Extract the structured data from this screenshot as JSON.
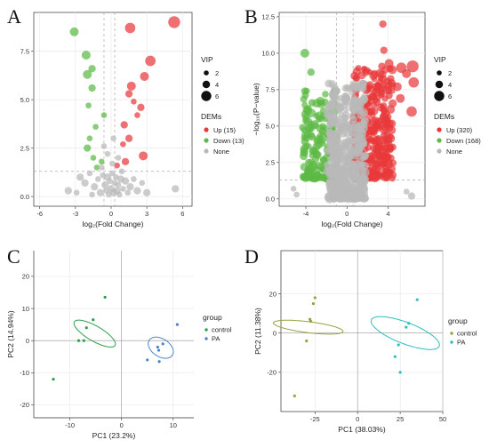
{
  "panel_letters": [
    "A",
    "B",
    "C",
    "D"
  ],
  "colors": {
    "up": "#e8393b",
    "down": "#5cb945",
    "none": "#b9b9b9",
    "grid": "#e9e9e9",
    "control_C": "#2e9f4a",
    "pa_C": "#4e86c4",
    "control_D": "#97a33f",
    "pa_D": "#2ebdc0"
  },
  "chart_data": [
    {
      "id": "A",
      "type": "scatter",
      "xlabel": "log₂(Fold Change)",
      "ylabel": "",
      "xlim": [
        -6.5,
        6.8
      ],
      "ylim": [
        -0.5,
        9.5
      ],
      "xticks": [
        -6,
        -3,
        0,
        3,
        6
      ],
      "yticks": [
        0.0,
        2.5,
        5.0,
        7.5
      ],
      "ytick_labels": [
        "0.0",
        "2.5",
        "5.0",
        "7.5"
      ],
      "vlines": [
        -0.6,
        0.3
      ],
      "hline": 1.3,
      "legend": {
        "size_title": "VIP",
        "size_labels": [
          "2",
          "4",
          "6"
        ],
        "color_title": "DEMs",
        "color_labels": [
          "Up (15)",
          "Down (13)",
          "None"
        ]
      },
      "series": [
        {
          "name": "Up (15)",
          "color_key": "up",
          "points": [
            [
              5.3,
              9.0,
              6
            ],
            [
              1.6,
              8.7,
              5
            ],
            [
              3.3,
              7.0,
              5
            ],
            [
              2.8,
              6.2,
              4
            ],
            [
              1.7,
              5.7,
              4
            ],
            [
              1.5,
              5.3,
              3
            ],
            [
              2.5,
              4.6,
              3
            ],
            [
              1.1,
              3.7,
              3
            ],
            [
              1.5,
              3.0,
              3
            ],
            [
              2.7,
              2.1,
              4
            ],
            [
              1.2,
              1.8,
              3
            ],
            [
              0.5,
              1.6,
              2
            ],
            [
              2.2,
              4.2,
              2
            ],
            [
              1.9,
              4.9,
              2
            ],
            [
              1.0,
              2.7,
              2
            ]
          ]
        },
        {
          "name": "Down (13)",
          "color_key": "down",
          "points": [
            [
              -3.1,
              8.5,
              4
            ],
            [
              -2.1,
              7.3,
              4
            ],
            [
              -1.6,
              6.6,
              3
            ],
            [
              -2.0,
              6.3,
              4
            ],
            [
              -1.6,
              5.6,
              3
            ],
            [
              -1.9,
              4.7,
              2
            ],
            [
              -0.6,
              4.2,
              2
            ],
            [
              -1.3,
              3.6,
              2
            ],
            [
              -1.8,
              3.0,
              2
            ],
            [
              -2.0,
              2.5,
              3
            ],
            [
              -0.8,
              1.8,
              2
            ],
            [
              -1.2,
              1.5,
              2
            ],
            [
              -1.5,
              2.0,
              2
            ]
          ]
        },
        {
          "name": "None",
          "color_key": "none",
          "points": [
            [
              -3.6,
              0.3,
              3
            ],
            [
              -2.6,
              1.0,
              3
            ],
            [
              -2.2,
              0.7,
              3
            ],
            [
              -1.8,
              1.2,
              2
            ],
            [
              -1.4,
              0.5,
              3
            ],
            [
              -1.1,
              0.9,
              2
            ],
            [
              -0.9,
              0.2,
              3
            ],
            [
              -0.7,
              1.1,
              2
            ],
            [
              -0.5,
              0.6,
              3
            ],
            [
              -0.4,
              0.3,
              2
            ],
            [
              -0.3,
              1.0,
              3
            ],
            [
              -0.2,
              0.1,
              2
            ],
            [
              -0.1,
              0.8,
              2
            ],
            [
              0.0,
              0.4,
              3
            ],
            [
              0.1,
              1.2,
              2
            ],
            [
              0.2,
              0.2,
              3
            ],
            [
              0.3,
              0.7,
              2
            ],
            [
              0.4,
              1.0,
              2
            ],
            [
              0.5,
              0.3,
              3
            ],
            [
              0.6,
              0.6,
              2
            ],
            [
              0.7,
              0.1,
              2
            ],
            [
              0.8,
              0.9,
              3
            ],
            [
              1.0,
              0.4,
              2
            ],
            [
              1.2,
              0.8,
              3
            ],
            [
              1.4,
              0.2,
              2
            ],
            [
              1.6,
              0.5,
              3
            ],
            [
              1.9,
              0.9,
              2
            ],
            [
              2.2,
              0.3,
              3
            ],
            [
              2.6,
              0.7,
              2
            ],
            [
              3.0,
              0.2,
              3
            ],
            [
              5.4,
              0.4,
              3
            ],
            [
              -0.6,
              2.6,
              2
            ],
            [
              0.2,
              3.0,
              2
            ],
            [
              -0.3,
              2.2,
              2
            ],
            [
              0.6,
              2.0,
              2
            ],
            [
              -2.9,
              0.2,
              2
            ],
            [
              0.9,
              1.3,
              2
            ],
            [
              -1.6,
              0.1,
              2
            ],
            [
              0.1,
              1.7,
              2
            ],
            [
              -0.8,
              1.5,
              2
            ]
          ]
        }
      ]
    },
    {
      "id": "B",
      "type": "scatter",
      "xlabel": "log₂(Fold Change)",
      "ylabel": "−log₁₀(P−value)",
      "xlim": [
        -6.6,
        7.6
      ],
      "ylim": [
        -0.5,
        12.8
      ],
      "xticks": [
        -4,
        0,
        4
      ],
      "yticks": [
        0.0,
        2.5,
        5.0,
        7.5,
        10.0,
        12.5
      ],
      "ytick_labels": [
        "0.0",
        "2.5",
        "5.0",
        "7.5",
        "10.0",
        "12.5"
      ],
      "vlines": [
        -1.0,
        0.6
      ],
      "hline": 1.3,
      "legend": {
        "size_title": "VIP",
        "size_labels": [
          "2",
          "4",
          "6"
        ],
        "color_title": "DEMs",
        "color_labels": [
          "Up (320)",
          "Down (168)",
          "None"
        ]
      },
      "clouds": [
        {
          "color_key": "up",
          "count": 320,
          "x_range": [
            0.6,
            4.5
          ],
          "y_range": [
            1.4,
            9.0
          ],
          "seed": 11
        },
        {
          "color_key": "down",
          "count": 168,
          "x_range": [
            -4.3,
            -1.0
          ],
          "y_range": [
            1.4,
            7.5
          ],
          "seed": 23
        },
        {
          "color_key": "none",
          "count": 460,
          "x_range": [
            -1.9,
            1.8
          ],
          "y_range": [
            0.0,
            8.0
          ],
          "seed": 37
        }
      ],
      "series": [
        {
          "name": "Up (320)",
          "color_key": "up",
          "points": [
            [
              3.5,
              12.0,
              3
            ],
            [
              3.6,
              10.2,
              3
            ],
            [
              6.4,
              9.1,
              6
            ],
            [
              5.3,
              9.0,
              5
            ],
            [
              4.1,
              9.3,
              4
            ],
            [
              6.5,
              8.0,
              5
            ],
            [
              5.8,
              8.6,
              4
            ],
            [
              4.9,
              7.7,
              4
            ],
            [
              5.2,
              6.9,
              4
            ],
            [
              6.3,
              6.0,
              5
            ],
            [
              4.1,
              7.1,
              3
            ],
            [
              3.4,
              9.1,
              3
            ]
          ]
        },
        {
          "name": "Down (168)",
          "color_key": "down",
          "points": [
            [
              -4.1,
              10.0,
              4
            ],
            [
              -3.5,
              8.7,
              3
            ],
            [
              -4.1,
              7.4,
              3
            ],
            [
              -4.3,
              4.9,
              3
            ],
            [
              -4.0,
              3.6,
              3
            ],
            [
              -3.4,
              6.6,
              3
            ]
          ]
        },
        {
          "name": "None",
          "color_key": "none",
          "points": [
            [
              -5.2,
              0.7,
              2
            ],
            [
              6.3,
              0.2,
              3
            ],
            [
              -4.9,
              0.3,
              2
            ],
            [
              5.8,
              0.5,
              2
            ]
          ]
        }
      ]
    },
    {
      "id": "C",
      "type": "scatter",
      "xlabel": "PC1 (23.2%)",
      "ylabel": "PC2 (14.94%)",
      "xlim": [
        -17,
        14
      ],
      "ylim": [
        -24,
        28
      ],
      "xticks": [
        -10,
        0,
        10
      ],
      "yticks": [
        -20,
        -10,
        0,
        10,
        20
      ],
      "ytick_labels": [
        "-20",
        "-10",
        "0",
        "10",
        "20"
      ],
      "legend": {
        "title": "group",
        "labels": [
          "control",
          "PA"
        ]
      },
      "series": [
        {
          "name": "control",
          "color_key": "control_C",
          "points": [
            [
              -3.2,
              13.5
            ],
            [
              -5.5,
              6.5
            ],
            [
              -6.8,
              4.0
            ],
            [
              -7.3,
              0.0
            ],
            [
              -8.3,
              0.0
            ],
            [
              -13.2,
              -12.0
            ]
          ],
          "ellipse": {
            "cx": -5.2,
            "cy": 2.2,
            "rx": 8.5,
            "ry": 26.5,
            "angle": -60
          }
        },
        {
          "name": "PA",
          "color_key": "pa_C",
          "points": [
            [
              10.8,
              5.0
            ],
            [
              7.0,
              -2.0
            ],
            [
              7.2,
              -3.0
            ],
            [
              5.0,
              -6.0
            ],
            [
              7.3,
              -6.5
            ],
            [
              8.0,
              -1.0
            ]
          ],
          "ellipse": {
            "cx": 7.6,
            "cy": -2.2,
            "rx": 10.0,
            "ry": 15.5,
            "angle": -57
          }
        }
      ]
    },
    {
      "id": "D",
      "type": "scatter",
      "xlabel": "PC1 (38.03%)",
      "ylabel": "PC2 (11.38%)",
      "xlim": [
        -45,
        50
      ],
      "ylim": [
        -40,
        42
      ],
      "xticks": [
        -25,
        0,
        25,
        50
      ],
      "yticks": [
        -20,
        0,
        20
      ],
      "ytick_labels": [
        "-20",
        "0",
        "20"
      ],
      "legend": {
        "title": "group",
        "labels": [
          "control",
          "PA"
        ]
      },
      "series": [
        {
          "name": "control",
          "color_key": "control_D",
          "points": [
            [
              -25.0,
              18.0
            ],
            [
              -26.0,
              15.0
            ],
            [
              -28.0,
              7.0
            ],
            [
              -27.5,
              6.0
            ],
            [
              -30.0,
              -4.0
            ],
            [
              -37.0,
              -32.0
            ]
          ],
          "ellipse": {
            "cx": -29.0,
            "cy": 3.0,
            "rx": 6.2,
            "ry": 39.5,
            "angle": -83
          }
        },
        {
          "name": "PA",
          "color_key": "pa_D",
          "points": [
            [
              35.0,
              17.0
            ],
            [
              30.0,
              5.0
            ],
            [
              28.5,
              3.0
            ],
            [
              24.0,
              -6.0
            ],
            [
              22.0,
              -12.0
            ],
            [
              25.0,
              -20.0
            ]
          ],
          "ellipse": {
            "cx": 28.0,
            "cy": 0.0,
            "rx": 12.0,
            "ry": 41.0,
            "angle": -69
          }
        }
      ]
    }
  ]
}
